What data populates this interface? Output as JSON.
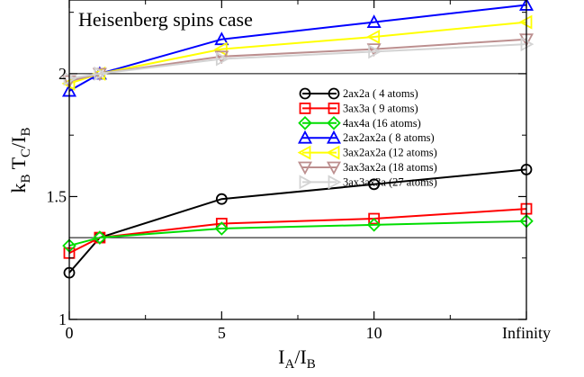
{
  "chart_data": {
    "type": "line",
    "title": "Heisenberg spins case",
    "xlabel": {
      "main": "I",
      "sub1": "A",
      "mid": "/I",
      "sub2": "B"
    },
    "ylabel": {
      "k": "k",
      "sub_b": "B",
      "t": " T",
      "sub_c": "C",
      "slash": "/I",
      "sub_b2": "B"
    },
    "xlim": [
      0,
      15
    ],
    "ylim": [
      1,
      2.3
    ],
    "x_ticks": [
      {
        "value": 0,
        "label": "0"
      },
      {
        "value": 5,
        "label": "5"
      },
      {
        "value": 10,
        "label": "10"
      },
      {
        "value": 15,
        "label": "Infinity"
      }
    ],
    "y_ticks": [
      {
        "value": 1,
        "label": "1"
      },
      {
        "value": 1.5,
        "label": "1.5"
      },
      {
        "value": 2,
        "label": "2"
      }
    ],
    "x": [
      0,
      1,
      5,
      10,
      15
    ],
    "reference_lines": [
      2.0,
      1.333
    ],
    "series": [
      {
        "name": "2ax2a ( 4 atoms)",
        "color": "#000000",
        "marker": "circle",
        "values": [
          1.19,
          1.333,
          1.49,
          1.55,
          1.61
        ]
      },
      {
        "name": "3ax3a ( 9 atoms)",
        "color": "#ff0000",
        "marker": "square",
        "values": [
          1.27,
          1.333,
          1.39,
          1.41,
          1.45
        ]
      },
      {
        "name": "4ax4a (16 atoms)",
        "color": "#00dd00",
        "marker": "diamond",
        "values": [
          1.3,
          1.333,
          1.37,
          1.385,
          1.4
        ]
      },
      {
        "name": "2ax2ax2a ( 8 atoms)",
        "color": "#0000ff",
        "marker": "triangle-up",
        "values": [
          1.93,
          2.0,
          2.14,
          2.21,
          2.28
        ]
      },
      {
        "name": "3ax2ax2a (12 atoms)",
        "color": "#ffff00",
        "marker": "triangle-left",
        "values": [
          1.96,
          2.0,
          2.1,
          2.15,
          2.21
        ]
      },
      {
        "name": "3ax3ax2a (18 atoms)",
        "color": "#bc8f8f",
        "marker": "triangle-down",
        "values": [
          1.97,
          2.0,
          2.07,
          2.1,
          2.14
        ]
      },
      {
        "name": "3ax3ax3a (27 atoms)",
        "color": "#d3d3d3",
        "marker": "triangle-right",
        "values": [
          1.98,
          2.0,
          2.06,
          2.09,
          2.12
        ]
      }
    ],
    "legend_position": "right"
  }
}
